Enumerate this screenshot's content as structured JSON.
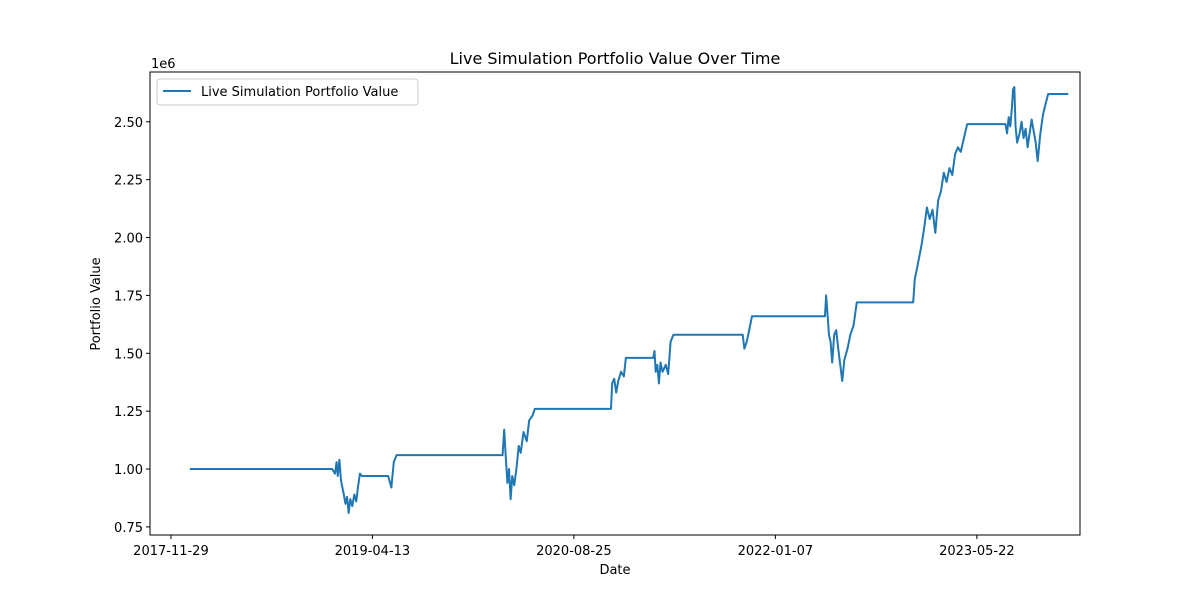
{
  "chart_data": {
    "type": "line",
    "title": "Live Simulation Portfolio Value Over Time",
    "xlabel": "Date",
    "ylabel": "Portfolio Value",
    "y_offset_text": "1e6",
    "ylim": [
      0.715,
      2.715
    ],
    "yticks": [
      0.75,
      1.0,
      1.25,
      1.5,
      1.75,
      2.0,
      2.25,
      2.5
    ],
    "ytick_labels": [
      "0.75",
      "1.00",
      "1.25",
      "1.50",
      "1.75",
      "2.00",
      "2.25",
      "2.50"
    ],
    "xlim": [
      "2017-10-08",
      "2024-02-02"
    ],
    "xticks": [
      "2017-11-29",
      "2019-04-13",
      "2020-08-25",
      "2022-01-07",
      "2023-05-22"
    ],
    "xtick_labels": [
      "2017-11-29",
      "2019-04-13",
      "2020-08-25",
      "2022-01-07",
      "2023-05-22"
    ],
    "grid": false,
    "legend_position": "upper-left",
    "series": [
      {
        "name": "Live Simulation Portfolio Value",
        "color": "#1f77b4",
        "points": [
          [
            "2018-01-15",
            1.0
          ],
          [
            "2019-01-03",
            1.0
          ],
          [
            "2019-01-10",
            0.98
          ],
          [
            "2019-01-14",
            1.03
          ],
          [
            "2019-01-17",
            0.97
          ],
          [
            "2019-01-21",
            1.04
          ],
          [
            "2019-01-25",
            0.95
          ],
          [
            "2019-02-01",
            0.89
          ],
          [
            "2019-02-05",
            0.85
          ],
          [
            "2019-02-09",
            0.88
          ],
          [
            "2019-02-13",
            0.81
          ],
          [
            "2019-02-17",
            0.87
          ],
          [
            "2019-02-22",
            0.84
          ],
          [
            "2019-02-27",
            0.89
          ],
          [
            "2019-03-04",
            0.86
          ],
          [
            "2019-03-08",
            0.92
          ],
          [
            "2019-03-13",
            0.98
          ],
          [
            "2019-03-18",
            0.97
          ],
          [
            "2019-05-22",
            0.97
          ],
          [
            "2019-05-30",
            0.92
          ],
          [
            "2019-06-05",
            1.03
          ],
          [
            "2019-06-12",
            1.06
          ],
          [
            "2020-03-01",
            1.06
          ],
          [
            "2020-03-05",
            1.17
          ],
          [
            "2020-03-09",
            1.05
          ],
          [
            "2020-03-13",
            0.94
          ],
          [
            "2020-03-17",
            1.0
          ],
          [
            "2020-03-21",
            0.87
          ],
          [
            "2020-03-25",
            0.97
          ],
          [
            "2020-03-30",
            0.93
          ],
          [
            "2020-04-05",
            1.01
          ],
          [
            "2020-04-10",
            1.1
          ],
          [
            "2020-04-15",
            1.07
          ],
          [
            "2020-04-22",
            1.16
          ],
          [
            "2020-04-30",
            1.12
          ],
          [
            "2020-05-06",
            1.21
          ],
          [
            "2020-05-14",
            1.23
          ],
          [
            "2020-05-20",
            1.26
          ],
          [
            "2020-11-25",
            1.26
          ],
          [
            "2020-11-28",
            1.37
          ],
          [
            "2020-12-03",
            1.39
          ],
          [
            "2020-12-08",
            1.33
          ],
          [
            "2020-12-13",
            1.38
          ],
          [
            "2020-12-20",
            1.42
          ],
          [
            "2020-12-27",
            1.4
          ],
          [
            "2021-01-01",
            1.48
          ],
          [
            "2021-03-10",
            1.48
          ],
          [
            "2021-03-13",
            1.51
          ],
          [
            "2021-03-16",
            1.42
          ],
          [
            "2021-03-20",
            1.45
          ],
          [
            "2021-03-24",
            1.37
          ],
          [
            "2021-03-28",
            1.46
          ],
          [
            "2021-04-02",
            1.42
          ],
          [
            "2021-04-10",
            1.45
          ],
          [
            "2021-04-16",
            1.41
          ],
          [
            "2021-04-22",
            1.55
          ],
          [
            "2021-04-29",
            1.58
          ],
          [
            "2021-10-18",
            1.58
          ],
          [
            "2021-10-22",
            1.52
          ],
          [
            "2021-10-28",
            1.55
          ],
          [
            "2021-11-03",
            1.6
          ],
          [
            "2021-11-10",
            1.66
          ],
          [
            "2022-05-10",
            1.66
          ],
          [
            "2022-05-13",
            1.75
          ],
          [
            "2022-05-16",
            1.68
          ],
          [
            "2022-05-20",
            1.58
          ],
          [
            "2022-05-24",
            1.55
          ],
          [
            "2022-05-28",
            1.46
          ],
          [
            "2022-06-02",
            1.58
          ],
          [
            "2022-06-07",
            1.6
          ],
          [
            "2022-06-12",
            1.52
          ],
          [
            "2022-06-17",
            1.45
          ],
          [
            "2022-06-22",
            1.38
          ],
          [
            "2022-06-27",
            1.47
          ],
          [
            "2022-07-05",
            1.52
          ],
          [
            "2022-07-12",
            1.58
          ],
          [
            "2022-07-20",
            1.62
          ],
          [
            "2022-07-28",
            1.72
          ],
          [
            "2022-12-15",
            1.72
          ],
          [
            "2022-12-19",
            1.82
          ],
          [
            "2022-12-26",
            1.88
          ],
          [
            "2023-01-05",
            1.97
          ],
          [
            "2023-01-12",
            2.05
          ],
          [
            "2023-01-18",
            2.13
          ],
          [
            "2023-01-25",
            2.08
          ],
          [
            "2023-02-01",
            2.12
          ],
          [
            "2023-02-08",
            2.02
          ],
          [
            "2023-02-15",
            2.16
          ],
          [
            "2023-02-22",
            2.2
          ],
          [
            "2023-03-01",
            2.28
          ],
          [
            "2023-03-08",
            2.24
          ],
          [
            "2023-03-15",
            2.3
          ],
          [
            "2023-03-22",
            2.27
          ],
          [
            "2023-03-29",
            2.36
          ],
          [
            "2023-04-05",
            2.39
          ],
          [
            "2023-04-12",
            2.37
          ],
          [
            "2023-04-20",
            2.43
          ],
          [
            "2023-04-28",
            2.49
          ],
          [
            "2023-08-01",
            2.49
          ],
          [
            "2023-08-05",
            2.45
          ],
          [
            "2023-08-09",
            2.52
          ],
          [
            "2023-08-13",
            2.48
          ],
          [
            "2023-08-17",
            2.56
          ],
          [
            "2023-08-20",
            2.64
          ],
          [
            "2023-08-23",
            2.65
          ],
          [
            "2023-08-26",
            2.48
          ],
          [
            "2023-08-30",
            2.41
          ],
          [
            "2023-09-05",
            2.45
          ],
          [
            "2023-09-10",
            2.5
          ],
          [
            "2023-09-15",
            2.43
          ],
          [
            "2023-09-20",
            2.47
          ],
          [
            "2023-09-25",
            2.39
          ],
          [
            "2023-09-30",
            2.45
          ],
          [
            "2023-10-05",
            2.51
          ],
          [
            "2023-10-10",
            2.46
          ],
          [
            "2023-10-15",
            2.41
          ],
          [
            "2023-10-20",
            2.33
          ],
          [
            "2023-10-26",
            2.44
          ],
          [
            "2023-11-02",
            2.53
          ],
          [
            "2023-11-09",
            2.58
          ],
          [
            "2023-11-15",
            2.62
          ],
          [
            "2024-01-04",
            2.62
          ]
        ]
      }
    ]
  }
}
